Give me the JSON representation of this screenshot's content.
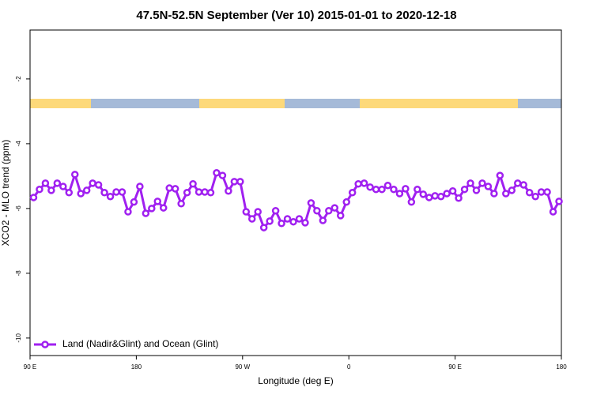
{
  "chart_data": {
    "type": "line",
    "title": "47.5N-52.5N September (Ver 10)   2015-01-01 to 2020-12-18",
    "xlabel": "Longitude (deg E)",
    "ylabel": "XCO2 - MLO trend (ppm)",
    "x": [
      93,
      98,
      103,
      108,
      113,
      118,
      123,
      128,
      133,
      138,
      143,
      148,
      153,
      158,
      163,
      168,
      173,
      178,
      183,
      188,
      193,
      198,
      203,
      208,
      213,
      218,
      223,
      228,
      233,
      238,
      243,
      248,
      253,
      258,
      263,
      268,
      273,
      278,
      283,
      288,
      293,
      298,
      303,
      308,
      313,
      318,
      323,
      328,
      333,
      338,
      343,
      348,
      353,
      358,
      363,
      368,
      373,
      378,
      383,
      388,
      393,
      398,
      403,
      408,
      413,
      418,
      423,
      428,
      433,
      438,
      443,
      448,
      453,
      458,
      463,
      468,
      473,
      478,
      483,
      488,
      493,
      498,
      503,
      508,
      513,
      518,
      523,
      528,
      533,
      538
    ],
    "series": [
      {
        "name": "Land (Nadir&Glint) and Ocean (Glint)",
        "color": "#a020f0",
        "values": [
          -5.66,
          -5.41,
          -5.22,
          -5.44,
          -5.22,
          -5.32,
          -5.51,
          -4.95,
          -5.54,
          -5.44,
          -5.22,
          -5.27,
          -5.51,
          -5.63,
          -5.49,
          -5.49,
          -6.1,
          -5.8,
          -5.32,
          -6.15,
          -6.0,
          -5.78,
          -5.98,
          -5.37,
          -5.39,
          -5.85,
          -5.51,
          -5.24,
          -5.49,
          -5.49,
          -5.51,
          -4.9,
          -4.98,
          -5.46,
          -5.17,
          -5.17,
          -6.1,
          -6.32,
          -6.1,
          -6.59,
          -6.39,
          -6.07,
          -6.46,
          -6.32,
          -6.41,
          -6.32,
          -6.44,
          -5.83,
          -6.07,
          -6.37,
          -6.07,
          -5.98,
          -6.22,
          -5.8,
          -5.51,
          -5.24,
          -5.22,
          -5.34,
          -5.41,
          -5.41,
          -5.29,
          -5.41,
          -5.54,
          -5.39,
          -5.8,
          -5.41,
          -5.56,
          -5.66,
          -5.61,
          -5.63,
          -5.54,
          -5.46,
          -5.68,
          -5.41,
          -5.22,
          -5.44,
          -5.22,
          -5.32,
          -5.54,
          -4.98,
          -5.54,
          -5.44,
          -5.22,
          -5.27,
          -5.51,
          -5.63,
          -5.49,
          -5.49,
          -6.1,
          -5.78
        ]
      }
    ],
    "xlim": [
      90,
      540
    ],
    "xticks": [
      {
        "value": 90,
        "label": "90 E"
      },
      180,
      {
        "value": 270,
        "label": "90 W"
      },
      {
        "value": 360,
        "label": "0"
      },
      {
        "value": 450,
        "label": "90 E"
      },
      {
        "value": 540,
        "label": "180"
      }
    ],
    "ylim": [
      -10.54,
      -0.49
    ],
    "yticks": [
      -2,
      -4,
      -6,
      -8,
      -10
    ],
    "legend": "bottom-left"
  }
}
